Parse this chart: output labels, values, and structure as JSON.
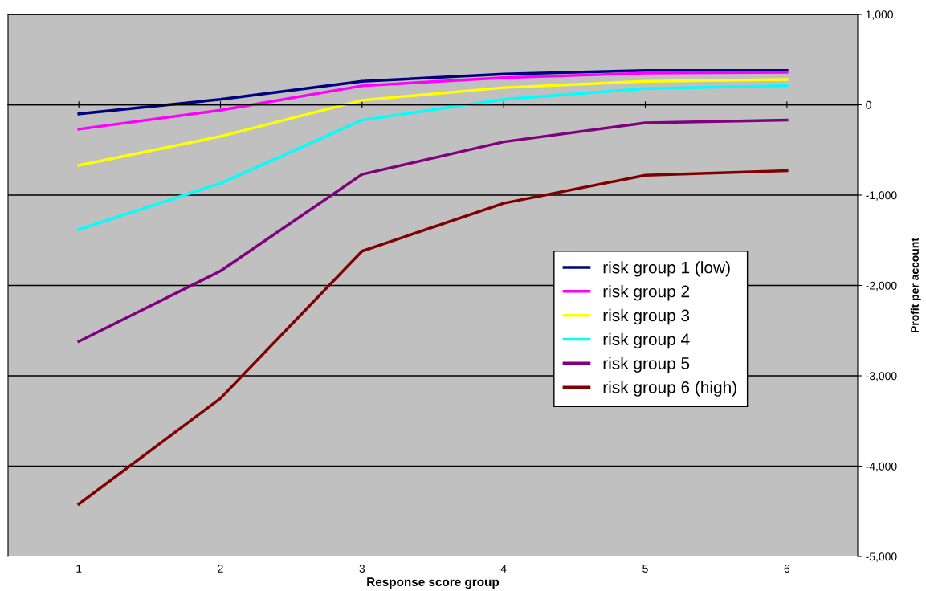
{
  "chart_data": {
    "type": "line",
    "xlabel": "Response score group",
    "ylabel": "Profit per account",
    "categories": [
      "1",
      "2",
      "3",
      "4",
      "5",
      "6"
    ],
    "series": [
      {
        "name": "risk group 1 (low)",
        "color": "#000080",
        "values": [
          -100,
          60,
          260,
          340,
          380,
          380
        ]
      },
      {
        "name": "risk group 2",
        "color": "#ff00ff",
        "values": [
          -270,
          -60,
          210,
          300,
          350,
          360
        ]
      },
      {
        "name": "risk group 3",
        "color": "#ffff00",
        "values": [
          -670,
          -350,
          50,
          190,
          260,
          280
        ]
      },
      {
        "name": "risk group 4",
        "color": "#00ffff",
        "values": [
          -1380,
          -870,
          -170,
          60,
          180,
          210
        ]
      },
      {
        "name": "risk group 5",
        "color": "#800080",
        "values": [
          -2620,
          -1840,
          -770,
          -410,
          -200,
          -170
        ]
      },
      {
        "name": "risk group 6 (high)",
        "color": "#800000",
        "values": [
          -4420,
          -3250,
          -1620,
          -1090,
          -780,
          -730
        ]
      }
    ],
    "ylim": [
      -5000,
      1000
    ],
    "yticks": [
      {
        "value": -5000,
        "label": "-5,000"
      },
      {
        "value": -4000,
        "label": "-4,000"
      },
      {
        "value": -3000,
        "label": "-3,000"
      },
      {
        "value": -2000,
        "label": "-2,000"
      },
      {
        "value": -1000,
        "label": "-1,000"
      },
      0,
      {
        "value": 1000,
        "label": "1,000"
      }
    ],
    "grid": "y",
    "legend": "right",
    "marker": "none",
    "line_style": "solid"
  }
}
